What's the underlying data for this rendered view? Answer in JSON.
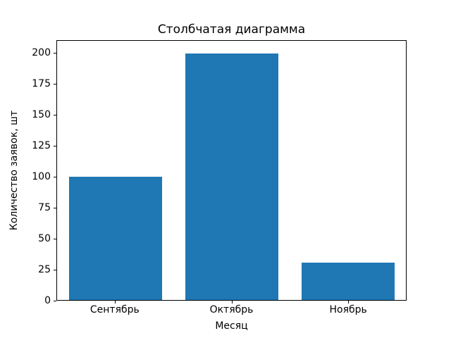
{
  "chart_data": {
    "type": "bar",
    "title": "Столбчатая диаграмма",
    "xlabel": "Месяц",
    "ylabel": "Количество заявок, шт",
    "categories": [
      "Сентябрь",
      "Октябрь",
      "Ноябрь"
    ],
    "values": [
      100,
      200,
      30
    ],
    "yticks": [
      0,
      25,
      50,
      75,
      100,
      125,
      150,
      175,
      200
    ],
    "ylim": [
      0,
      210
    ],
    "bar_width_fraction": 0.8,
    "grid": "off",
    "legend": "none",
    "bar_color": "#1f77b4",
    "axes_color": "#000000",
    "background_color": "#ffffff"
  }
}
